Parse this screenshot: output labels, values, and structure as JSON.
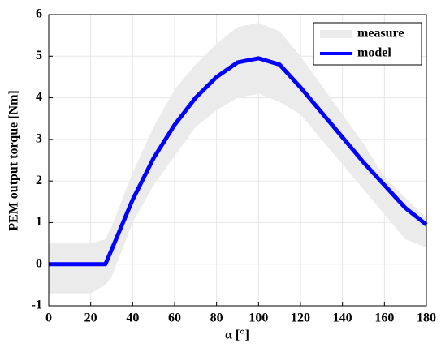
{
  "chart_data": {
    "type": "line",
    "xlabel": "α [°]",
    "ylabel": "PEM output torque [Nm]",
    "x": [
      0,
      10,
      20,
      27,
      30,
      40,
      50,
      60,
      70,
      80,
      90,
      100,
      110,
      120,
      130,
      140,
      150,
      160,
      170,
      180
    ],
    "series": [
      {
        "name": "measure",
        "color": "#ebebeb",
        "upper": [
          0.5,
          0.5,
          0.5,
          0.6,
          0.9,
          2.2,
          3.3,
          4.2,
          4.8,
          5.3,
          5.7,
          5.8,
          5.6,
          5.0,
          4.3,
          3.6,
          2.9,
          2.1,
          1.6,
          1.1
        ],
        "lower": [
          -0.7,
          -0.7,
          -0.7,
          -0.5,
          -0.3,
          1.0,
          1.9,
          2.6,
          3.3,
          3.7,
          4.0,
          4.1,
          3.9,
          3.6,
          3.0,
          2.4,
          1.8,
          1.2,
          0.6,
          0.4
        ]
      },
      {
        "name": "model",
        "color": "#0000ff",
        "values": [
          0,
          0,
          0,
          0,
          0.35,
          1.55,
          2.55,
          3.35,
          4.0,
          4.5,
          4.85,
          4.95,
          4.8,
          4.25,
          3.65,
          3.05,
          2.45,
          1.9,
          1.35,
          0.95
        ]
      }
    ],
    "xlim": [
      0,
      180
    ],
    "xticks": [
      0,
      20,
      40,
      60,
      80,
      100,
      120,
      140,
      160,
      180
    ],
    "ylim": [
      -1,
      6
    ],
    "yticks": [
      -1,
      0,
      1,
      2,
      3,
      4,
      5,
      6
    ],
    "grid": true,
    "legend": "upper right"
  }
}
